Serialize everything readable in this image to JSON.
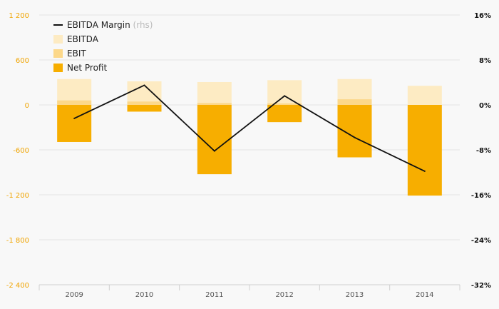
{
  "chart_data": {
    "type": "bar",
    "categories": [
      "2009",
      "2010",
      "2011",
      "2012",
      "2013",
      "2014"
    ],
    "series": [
      {
        "name": "EBITDA",
        "kind": "bar",
        "axis": "left",
        "color": "#fdebc3",
        "values": [
          345,
          315,
          305,
          330,
          345,
          255
        ]
      },
      {
        "name": "EBIT",
        "kind": "bar",
        "axis": "left",
        "color": "#fcd88a",
        "values": [
          60,
          45,
          25,
          20,
          75,
          0
        ]
      },
      {
        "name": "Net Profit",
        "kind": "bar",
        "axis": "left",
        "color": "#f7ae00",
        "values": [
          -495,
          -90,
          -925,
          -230,
          -700,
          -1210
        ]
      },
      {
        "name": "EBITDA Margin",
        "name_suffix": "(rhs)",
        "kind": "line",
        "axis": "right",
        "color": "#111111",
        "values": [
          -2.4,
          3.5,
          -8.2,
          1.6,
          -5.8,
          -11.8
        ]
      }
    ],
    "y_left": {
      "ylim": [
        -2400,
        1200
      ],
      "ticks": [
        1200,
        600,
        0,
        -600,
        -1200,
        -1800,
        -2400
      ],
      "tick_labels": [
        "1 200",
        "600",
        "0",
        "-600",
        "-1 200",
        "-1 800",
        "-2 400"
      ],
      "color": "#f0a400"
    },
    "y_right": {
      "ylim": [
        -32,
        16
      ],
      "ticks": [
        16,
        8,
        0,
        -8,
        -16,
        -24,
        -32
      ],
      "tick_labels": [
        "16%",
        "8%",
        "0%",
        "-8%",
        "-16%",
        "-24%",
        "-32%"
      ]
    },
    "legend": {
      "position": "top-left",
      "order": [
        "EBITDA Margin",
        "EBITDA",
        "EBIT",
        "Net Profit"
      ]
    },
    "grid": true
  }
}
